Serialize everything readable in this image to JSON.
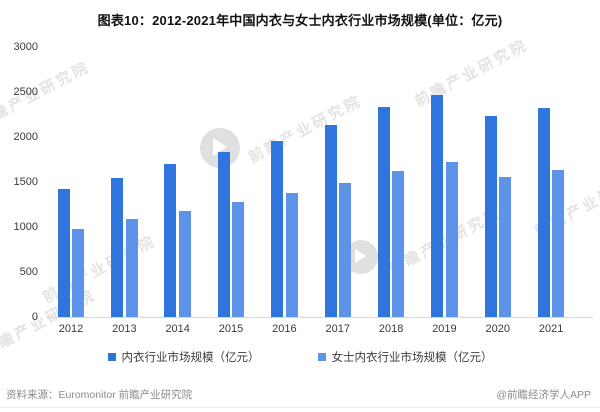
{
  "title": "图表10：2012-2021年中国内衣与女士内衣行业市场规模(单位：亿元)",
  "chart_data": {
    "type": "bar",
    "title": "图表10：2012-2021年中国内衣与女士内衣行业市场规模(单位：亿元)",
    "categories": [
      "2012",
      "2013",
      "2014",
      "2015",
      "2016",
      "2017",
      "2018",
      "2019",
      "2020",
      "2021"
    ],
    "series": [
      {
        "name": "内衣行业市场规模（亿元）",
        "color": "#2e75dd",
        "values": [
          1420,
          1550,
          1700,
          1830,
          1960,
          2130,
          2330,
          2470,
          2230,
          2320
        ]
      },
      {
        "name": "女士内衣行业市场规模（亿元）",
        "color": "#5d94e8",
        "values": [
          980,
          1090,
          1180,
          1280,
          1380,
          1490,
          1620,
          1720,
          1560,
          1630
        ]
      }
    ],
    "xlabel": "",
    "ylabel": "",
    "ylim": [
      0,
      3000
    ],
    "yticks": [
      0,
      500,
      1000,
      1500,
      2000,
      2500,
      3000
    ],
    "grid": false,
    "legend_position": "bottom"
  },
  "footer": {
    "source": "资料来源：Euromonitor 前瞻产业研究院",
    "credit": "@前瞻经济学人APP"
  },
  "watermark": {
    "text": "前瞻产业研究院"
  }
}
